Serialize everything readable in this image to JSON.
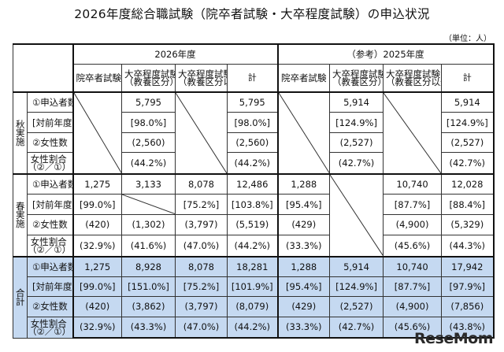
{
  "title": "2026年度総合職試験（院卒者試験・大卒程度試験）の申込状況",
  "unit": "（単位：人）",
  "headers": {
    "year2026": "2026年度",
    "year2025": "（参考）2025年度",
    "graduate": "院卒者試験",
    "univ_general": "大卒程度試験（教養区分）",
    "univ_general_l1": "大卒程度試験",
    "univ_general_l2": "（教養区分）",
    "univ_other_l1": "大卒程度試験",
    "univ_other_l2": "（教養区分以外）",
    "total": "計"
  },
  "sections": {
    "autumn": "秋実施",
    "spring": "春実施",
    "total": "合計"
  },
  "row_labels": {
    "applicants": "①申込者数",
    "yoy": "[対前年度比]",
    "women": "②女性数",
    "women_ratio_l1": "女性割合",
    "women_ratio_l2": "（②／①）"
  },
  "autumn": {
    "applicants": [
      "",
      "5,795",
      "",
      "5,795",
      "",
      "5,914",
      "",
      "5,914"
    ],
    "yoy": [
      "",
      "[98.0%]",
      "",
      "[98.0%]",
      "",
      "[124.9%]",
      "",
      "[124.9%]"
    ],
    "women": [
      "",
      "(2,560)",
      "",
      "(2,560)",
      "",
      "(2,527)",
      "",
      "(2,527)"
    ],
    "ratio": [
      "",
      "(44.2%)",
      "",
      "(44.2%)",
      "",
      "(42.7%)",
      "",
      "(42.7%)"
    ]
  },
  "spring": {
    "applicants": [
      "1,275",
      "3,133",
      "8,078",
      "12,486",
      "1,288",
      "",
      "10,740",
      "12,028"
    ],
    "yoy": [
      "[99.0%]",
      "",
      "[75.2%]",
      "[103.8%]",
      "[95.4%]",
      "",
      "[87.7%]",
      "[88.4%]"
    ],
    "women": [
      "(420)",
      "(1,302)",
      "(3,797)",
      "(5,519)",
      "(429)",
      "",
      "(4,900)",
      "(5,329)"
    ],
    "ratio": [
      "(32.9%)",
      "(41.6%)",
      "(47.0%)",
      "(44.2%)",
      "(33.3%)",
      "",
      "(45.6%)",
      "(44.3%)"
    ]
  },
  "total": {
    "applicants": [
      "1,275",
      "8,928",
      "8,078",
      "18,281",
      "1,288",
      "5,914",
      "10,740",
      "17,942"
    ],
    "yoy": [
      "[99.0%]",
      "[151.0%]",
      "[75.2%]",
      "[101.9%]",
      "[95.4%]",
      "[124.9%]",
      "[87.7%]",
      "[97.9%]"
    ],
    "women": [
      "(420)",
      "(3,862)",
      "(3,797)",
      "(8,079)",
      "(429)",
      "(2,527)",
      "(4,900)",
      "(7,856)"
    ],
    "ratio": [
      "(32.9%)",
      "(43.3%)",
      "(47.0%)",
      "(44.2%)",
      "(33.3%)",
      "(42.7%)",
      "(45.6%)",
      "(43.8%)"
    ]
  },
  "logo": "ReseMom",
  "colors": {
    "highlight": "#c5d9f1"
  }
}
